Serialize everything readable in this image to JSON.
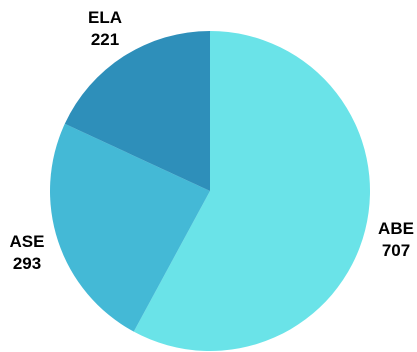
{
  "chart_data": {
    "type": "pie",
    "title": "",
    "slices": [
      {
        "label": "ABE",
        "value": 707,
        "display_value": "707",
        "color": "#6ae3e8"
      },
      {
        "label": "ASE",
        "value": 293,
        "display_value": "293",
        "color": "#44b9d6"
      },
      {
        "label": "ELA",
        "value": 221,
        "display_value": "221",
        "color": "#2e8fba"
      }
    ],
    "start": "12 o'clock",
    "direction": "clockwise",
    "legend": "none"
  }
}
